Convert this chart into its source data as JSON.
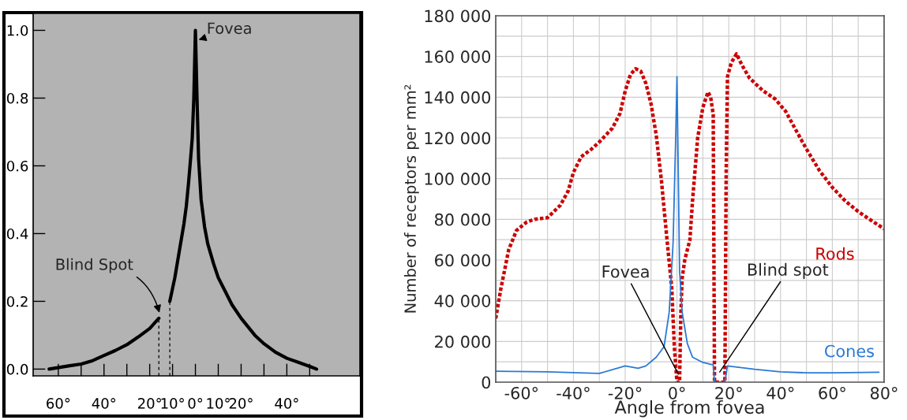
{
  "chart_data": [
    {
      "type": "line",
      "xlim": [
        -71,
        72
      ],
      "ylim": [
        -0.02,
        1.05
      ],
      "xticks": [
        {
          "value": -60,
          "label": "60°"
        },
        {
          "value": -50,
          "label": null
        },
        {
          "value": -40,
          "label": "40°"
        },
        {
          "value": -30,
          "label": null
        },
        {
          "value": -20,
          "label": "20°"
        },
        {
          "value": -10,
          "label": "10°"
        },
        {
          "value": 0,
          "label": "0°"
        },
        {
          "value": 10,
          "label": "10°"
        },
        {
          "value": 20,
          "label": "20°"
        },
        {
          "value": 30,
          "label": null
        },
        {
          "value": 40,
          "label": "40°"
        },
        {
          "value": 50,
          "label": null
        }
      ],
      "yticks": [
        {
          "value": 0,
          "label": "0.0"
        },
        0.2,
        0.4,
        0.6,
        0.8,
        {
          "value": 1,
          "label": "1.0"
        }
      ],
      "grid": false,
      "legend": false,
      "series": [
        {
          "color": "#000000",
          "x": [
            -64,
            -55,
            -50,
            -45,
            -40,
            -35,
            -30,
            -25,
            -20,
            -16,
            -13.5,
            -11.2,
            -9,
            -7,
            -5,
            -4,
            -3,
            -2,
            -1.4,
            -0.7,
            0,
            0.7,
            1.4,
            2.5,
            4,
            5.4,
            8,
            10,
            13,
            16,
            20,
            26,
            30,
            35,
            40,
            45,
            50,
            53
          ],
          "values": [
            0.0,
            0.01,
            0.015,
            0.025,
            0.04,
            0.055,
            0.072,
            0.095,
            0.12,
            0.15,
            null,
            0.2,
            0.27,
            0.35,
            0.43,
            0.48,
            0.55,
            0.63,
            0.68,
            0.8,
            1.0,
            0.8,
            0.62,
            0.5,
            0.42,
            0.37,
            0.31,
            0.27,
            0.23,
            0.19,
            0.15,
            0.1,
            0.075,
            0.05,
            0.032,
            0.02,
            0.008,
            0.0
          ]
        }
      ],
      "ref_lines": [
        {
          "axis": "x",
          "value": -16,
          "line_style": "dashed"
        },
        {
          "axis": "x",
          "value": -11.2,
          "line_style": "dashed"
        }
      ],
      "annotations": [
        {
          "text": "Fovea",
          "x": 0.5,
          "y": 0.97
        },
        {
          "text": "Blind Spot",
          "x": -15.5,
          "y": 0.16
        }
      ]
    },
    {
      "type": "line",
      "xlim": [
        -70,
        80
      ],
      "ylim": [
        0,
        180000
      ],
      "xlabel": "Angle from fovea",
      "ylabel": "Number of receptors per mm²",
      "xticks": [
        {
          "value": -70,
          "label": null
        },
        {
          "value": -60,
          "label": "-60°"
        },
        {
          "value": -50,
          "label": null
        },
        {
          "value": -40,
          "label": "-40°"
        },
        {
          "value": -30,
          "label": null
        },
        {
          "value": -20,
          "label": "-20°"
        },
        {
          "value": -10,
          "label": null
        },
        {
          "value": 0,
          "label": "0°"
        },
        {
          "value": 10,
          "label": null
        },
        {
          "value": 20,
          "label": "20°"
        },
        {
          "value": 30,
          "label": null
        },
        {
          "value": 40,
          "label": "40°"
        },
        {
          "value": 50,
          "label": null
        },
        {
          "value": 60,
          "label": "60°"
        },
        {
          "value": 70,
          "label": null
        },
        {
          "value": 80,
          "label": "80°"
        }
      ],
      "yticks": [
        {
          "value": 0,
          "label": "0"
        },
        {
          "value": 10000,
          "label": null
        },
        {
          "value": 20000,
          "label": "20 000"
        },
        {
          "value": 30000,
          "label": null
        },
        {
          "value": 40000,
          "label": "40 000"
        },
        {
          "value": 50000,
          "label": null
        },
        {
          "value": 60000,
          "label": "60 000"
        },
        {
          "value": 70000,
          "label": null
        },
        {
          "value": 80000,
          "label": "80 000"
        },
        {
          "value": 90000,
          "label": null
        },
        {
          "value": 100000,
          "label": "100 000"
        },
        {
          "value": 110000,
          "label": null
        },
        {
          "value": 120000,
          "label": "120 000"
        },
        {
          "value": 130000,
          "label": null
        },
        {
          "value": 140000,
          "label": "140 000"
        },
        {
          "value": 150000,
          "label": null
        },
        {
          "value": 160000,
          "label": "160 000"
        },
        {
          "value": 170000,
          "label": null
        },
        {
          "value": 180000,
          "label": "180 000"
        }
      ],
      "grid": true,
      "legend": false,
      "series": [
        {
          "name": "Rods",
          "color": "#cc0000",
          "line_style": "dotted",
          "x": [
            -70,
            -68,
            -65,
            -62,
            -58,
            -55,
            -50,
            -45,
            -42,
            -40,
            -37,
            -33,
            -30,
            -25,
            -22,
            -20,
            -18,
            -16,
            -14,
            -12,
            -10,
            -8,
            -6,
            -4,
            -2,
            -1,
            0,
            1,
            1.5,
            2,
            3,
            4,
            5,
            6,
            8,
            10,
            12,
            13,
            14,
            14.5,
            18.5,
            19,
            19.5,
            21,
            23,
            25,
            28,
            33,
            38,
            42,
            45,
            50,
            55,
            60,
            65,
            70,
            75,
            80
          ],
          "values": [
            31300,
            46000,
            65000,
            74500,
            78700,
            80000,
            80800,
            87000,
            94000,
            103000,
            110700,
            114500,
            118000,
            124700,
            132000,
            143000,
            151000,
            154000,
            152800,
            146800,
            136600,
            121300,
            99000,
            72000,
            46000,
            17000,
            0,
            0,
            34000,
            51000,
            60000,
            65000,
            70000,
            89000,
            120000,
            135000,
            142600,
            140000,
            131500,
            0,
            0,
            102500,
            150000,
            157000,
            161300,
            156000,
            149400,
            143400,
            139000,
            133000,
            126000,
            114500,
            104000,
            95700,
            89000,
            83800,
            79500,
            75300
          ]
        },
        {
          "name": "Cones",
          "color": "#2a7ad5",
          "line_style": "solid",
          "x": [
            -70,
            -50,
            -30,
            -20,
            -15,
            -12,
            -8,
            -5,
            -3,
            -1.5,
            -0.5,
            0,
            0.5,
            1,
            2,
            4,
            6,
            10,
            14,
            14.5,
            18.5,
            19.5,
            30,
            40,
            50,
            60,
            78
          ],
          "values": [
            5400,
            5100,
            4300,
            8000,
            6800,
            8000,
            12300,
            17400,
            34400,
            68500,
            119600,
            150000,
            102500,
            54800,
            34400,
            19000,
            12300,
            9700,
            8500,
            0,
            0,
            8000,
            6300,
            5100,
            4600,
            4600,
            4900
          ]
        }
      ],
      "annotations": [
        {
          "text": "Fovea",
          "x": 0.5,
          "y": 4000
        },
        {
          "text": "Blind spot",
          "x": 16.5,
          "y": 5000
        }
      ]
    }
  ]
}
